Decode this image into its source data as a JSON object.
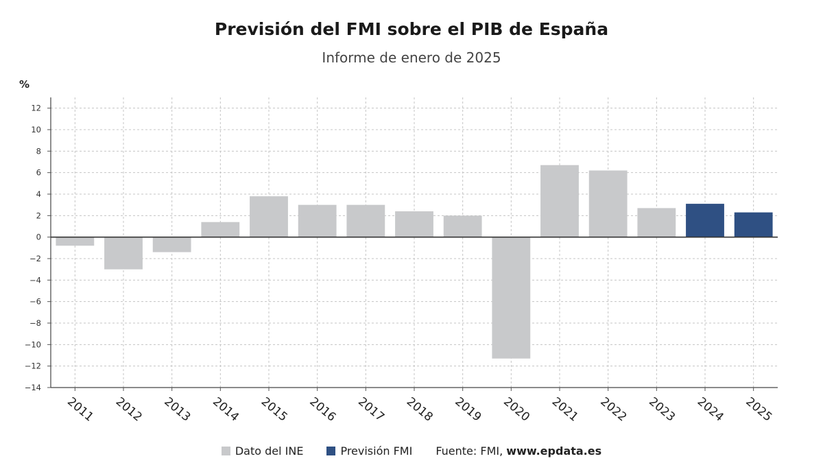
{
  "header": {
    "title": "Previsión del FMI sobre el PIB de España",
    "subtitle": "Informe de enero de 2025"
  },
  "legend": {
    "items": [
      {
        "label": "Dato del INE",
        "color": "#c8c9cb"
      },
      {
        "label": "Previsión FMI",
        "color": "#2f5083"
      }
    ],
    "source_prefix": "Fuente: FMI, ",
    "source_site": "www.epdata.es"
  },
  "chart_data": {
    "type": "bar",
    "title": "Previsión del FMI sobre el PIB de España",
    "subtitle": "Informe de enero de 2025",
    "xlabel": "",
    "ylabel": "%",
    "categories": [
      "2011",
      "2012",
      "2013",
      "2014",
      "2015",
      "2016",
      "2017",
      "2018",
      "2019",
      "2020",
      "2021",
      "2022",
      "2023",
      "2024",
      "2025"
    ],
    "series": [
      {
        "name": "Dato del INE",
        "color": "#c8c9cb",
        "values": [
          -0.8,
          -3.0,
          -1.4,
          1.4,
          3.8,
          3.0,
          3.0,
          2.4,
          2.0,
          -11.3,
          6.7,
          6.2,
          2.7,
          null,
          null
        ]
      },
      {
        "name": "Previsión FMI",
        "color": "#2f5083",
        "values": [
          null,
          null,
          null,
          null,
          null,
          null,
          null,
          null,
          null,
          null,
          null,
          null,
          null,
          3.1,
          2.3
        ]
      }
    ],
    "ylim": [
      -14,
      13
    ],
    "yticks": [
      12,
      10,
      8,
      6,
      4,
      2,
      0,
      -2,
      -4,
      -6,
      -8,
      -10,
      -12,
      -14
    ],
    "grid": true,
    "legend_position": "bottom"
  }
}
